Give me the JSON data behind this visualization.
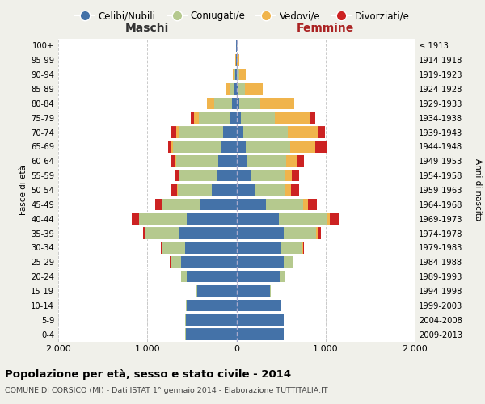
{
  "age_groups": [
    "0-4",
    "5-9",
    "10-14",
    "15-19",
    "20-24",
    "25-29",
    "30-34",
    "35-39",
    "40-44",
    "45-49",
    "50-54",
    "55-59",
    "60-64",
    "65-69",
    "70-74",
    "75-79",
    "80-84",
    "85-89",
    "90-94",
    "95-99",
    "100+"
  ],
  "birth_years": [
    "2009-2013",
    "2004-2008",
    "1999-2003",
    "1994-1998",
    "1989-1993",
    "1984-1988",
    "1979-1983",
    "1974-1978",
    "1969-1973",
    "1964-1968",
    "1959-1963",
    "1954-1958",
    "1949-1953",
    "1944-1948",
    "1939-1943",
    "1934-1938",
    "1929-1933",
    "1924-1928",
    "1919-1923",
    "1914-1918",
    "≤ 1913"
  ],
  "maschi": {
    "celibi": [
      570,
      570,
      560,
      440,
      560,
      620,
      580,
      650,
      560,
      400,
      280,
      220,
      200,
      180,
      150,
      80,
      50,
      20,
      10,
      3,
      2
    ],
    "coniugati": [
      2,
      3,
      5,
      15,
      60,
      120,
      260,
      380,
      530,
      430,
      380,
      420,
      480,
      530,
      500,
      340,
      200,
      60,
      20,
      5,
      2
    ],
    "vedovi": [
      0,
      0,
      0,
      0,
      0,
      0,
      0,
      0,
      2,
      2,
      3,
      5,
      10,
      20,
      30,
      60,
      80,
      30,
      10,
      3,
      0
    ],
    "divorziati": [
      0,
      0,
      0,
      0,
      2,
      5,
      10,
      20,
      80,
      80,
      70,
      50,
      40,
      40,
      50,
      30,
      0,
      0,
      0,
      0,
      0
    ]
  },
  "femmine": {
    "nubili": [
      530,
      530,
      500,
      380,
      490,
      530,
      500,
      530,
      480,
      330,
      210,
      160,
      120,
      100,
      80,
      50,
      30,
      12,
      8,
      3,
      2
    ],
    "coniugate": [
      2,
      2,
      4,
      10,
      50,
      100,
      240,
      360,
      530,
      420,
      340,
      380,
      440,
      500,
      500,
      380,
      240,
      80,
      20,
      5,
      2
    ],
    "vedove": [
      0,
      0,
      0,
      0,
      2,
      3,
      5,
      20,
      40,
      50,
      60,
      80,
      120,
      280,
      330,
      400,
      380,
      200,
      80,
      20,
      2
    ],
    "divorziate": [
      0,
      0,
      0,
      0,
      2,
      5,
      15,
      40,
      100,
      100,
      90,
      80,
      80,
      130,
      80,
      50,
      0,
      0,
      0,
      0,
      0
    ]
  },
  "colors": {
    "celibi_nubili": "#4472a8",
    "coniugati": "#b5c98e",
    "vedovi": "#f0b44c",
    "divorziati": "#cc2222"
  },
  "title": "Popolazione per età, sesso e stato civile - 2014",
  "subtitle": "COMUNE DI CORSICO (MI) - Dati ISTAT 1° gennaio 2014 - Elaborazione TUTTITALIA.IT",
  "ylabel_left": "Fasce di età",
  "ylabel_right": "Anni di nascita",
  "xlabel_maschi": "Maschi",
  "xlabel_femmine": "Femmine",
  "xlim": 2000,
  "bg_color": "#f0f0ea",
  "plot_bg": "#ffffff",
  "legend_labels": [
    "Celibi/Nubili",
    "Coniugati/e",
    "Vedovi/e",
    "Divorziati/e"
  ]
}
